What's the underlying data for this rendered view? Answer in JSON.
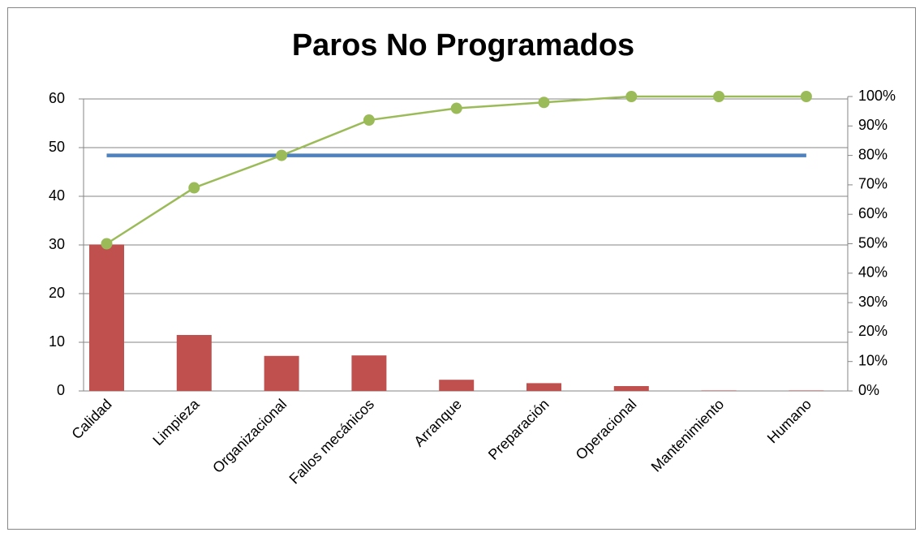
{
  "chart_data": {
    "type": "bar",
    "title": "Paros No Programados",
    "categories": [
      "Calidad",
      "Limpieza",
      "Organizacional",
      "Fallos mecánicos",
      "Arranque",
      "Preparación",
      "Operacional",
      "Mantenimiento",
      "Humano"
    ],
    "series": [
      {
        "type": "bar",
        "color": "#c0504d",
        "values": [
          30.1,
          11.5,
          7.2,
          7.3,
          2.3,
          1.6,
          1.0,
          0.1,
          0.1
        ]
      },
      {
        "type": "line",
        "color": "#9bbb59",
        "axis": "y2",
        "marker": true,
        "values": [
          50,
          69,
          80,
          92,
          96,
          98,
          100,
          100,
          100
        ]
      },
      {
        "type": "line",
        "color": "#4f81bd",
        "axis": "y2",
        "marker": false,
        "values": [
          80,
          80,
          80,
          80,
          80,
          80,
          80,
          80,
          80
        ]
      }
    ],
    "ylim": [
      0,
      60
    ],
    "yticks": [
      0,
      10,
      20,
      30,
      40,
      50,
      60
    ],
    "y2lim": [
      0,
      100
    ],
    "y2ticks": [
      {
        "value": 0,
        "label": "0%"
      },
      {
        "value": 10,
        "label": "10%"
      },
      {
        "value": 20,
        "label": "20%"
      },
      {
        "value": 30,
        "label": "30%"
      },
      {
        "value": 40,
        "label": "40%"
      },
      {
        "value": 50,
        "label": "50%"
      },
      {
        "value": 60,
        "label": "60%"
      },
      {
        "value": 70,
        "label": "70%"
      },
      {
        "value": 80,
        "label": "80%"
      },
      {
        "value": 90,
        "label": "90%"
      },
      {
        "value": 100,
        "label": "100%"
      }
    ],
    "grid": true
  }
}
